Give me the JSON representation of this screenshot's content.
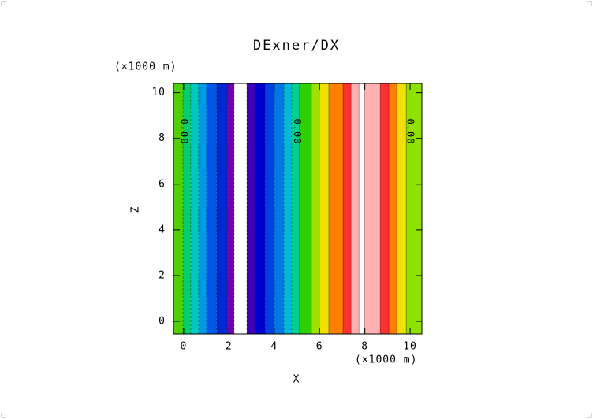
{
  "chart_data": {
    "type": "contourf",
    "title": "DExner/DX",
    "x_label": "X",
    "y_label": "Z",
    "x_unit_label": "(×1000 m)",
    "y_unit_label": "(×1000 m)",
    "xlim": [
      -0.45,
      10.52
    ],
    "ylim": [
      -0.55,
      10.4
    ],
    "xticks": [
      0,
      2,
      4,
      6,
      8,
      10
    ],
    "yticks": [
      0,
      2,
      4,
      6,
      8,
      10
    ],
    "x_edges": [
      -0.45,
      -0.03,
      0.31,
      0.66,
      1.01,
      1.46,
      1.92,
      2.23,
      2.79,
      3.14,
      3.59,
      4.01,
      4.43,
      4.77,
      5.12,
      5.64,
      5.99,
      6.41,
      7.04,
      7.39,
      7.74,
      7.98,
      8.68,
      9.06,
      9.41,
      9.83,
      10.52
    ],
    "colors": [
      "#50d000",
      "#00d070",
      "#00c8c0",
      "#0098e8",
      "#0058e8",
      "#0028d0",
      "#7000b0",
      "#ffffff",
      "#4000b8",
      "#0000d0",
      "#0040e0",
      "#0078e8",
      "#00b8d8",
      "#00d090",
      "#30d000",
      "#a0e000",
      "#f0e000",
      "#ff8000",
      "#ff3030",
      "#ffb0b0",
      "#ffffff",
      "#ffb0b0",
      "#ff3030",
      "#ff8000",
      "#f0e000",
      "#90e000"
    ],
    "contour_labels": [
      {
        "x": 0,
        "y": 8.3,
        "label": "0.00"
      },
      {
        "x": 5,
        "y": 8.3,
        "label": "0.00"
      },
      {
        "x": 10,
        "y": 8.3,
        "label": "0.00"
      }
    ]
  }
}
